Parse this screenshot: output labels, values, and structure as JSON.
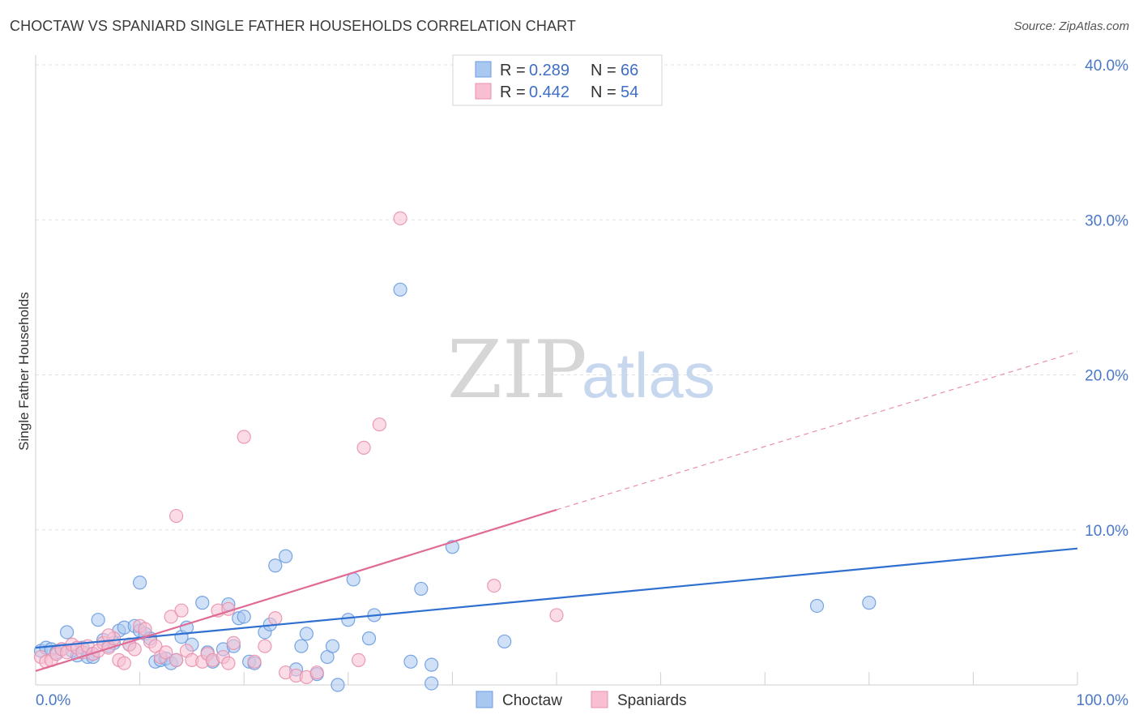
{
  "header": {
    "title": "CHOCTAW VS SPANIARD SINGLE FATHER HOUSEHOLDS CORRELATION CHART",
    "source": "Source: ZipAtlas.com"
  },
  "watermark": {
    "zip": "ZIP",
    "atlas": "atlas"
  },
  "legend": {
    "rows": [
      {
        "r_label": "R =",
        "r_value": "0.289",
        "n_label": "N =",
        "n_value": "66",
        "color": "#a9c8f0",
        "stroke": "#6a9be0"
      },
      {
        "r_label": "R =",
        "r_value": "0.442",
        "n_label": "N =",
        "n_value": "54",
        "color": "#f7bfd1",
        "stroke": "#e890ab"
      }
    ]
  },
  "chart_data": {
    "type": "scatter",
    "title": "CHOCTAW VS SPANIARD SINGLE FATHER HOUSEHOLDS CORRELATION CHART",
    "ylabel": "Single Father Households",
    "xlim": [
      0,
      100
    ],
    "ylim": [
      0,
      40
    ],
    "x_tick_labels": [
      {
        "value": 0,
        "label": "0.0%"
      },
      {
        "value": 100,
        "label": "100.0%"
      }
    ],
    "y_tick_labels": [
      {
        "value": 10,
        "label": "10.0%"
      },
      {
        "value": 20,
        "label": "20.0%"
      },
      {
        "value": 30,
        "label": "30.0%"
      },
      {
        "value": 40,
        "label": "40.0%"
      }
    ],
    "grid": true,
    "legend_position": "top-center",
    "series": [
      {
        "name": "Choctaw",
        "color": "#6a9be0",
        "fill": "#a9c8f0",
        "trend": {
          "x": [
            0,
            100
          ],
          "y": [
            2.4,
            8.8
          ]
        },
        "points": [
          [
            0.5,
            2.2
          ],
          [
            1,
            2.4
          ],
          [
            1.5,
            2.3
          ],
          [
            2,
            2.1
          ],
          [
            2.5,
            2.3
          ],
          [
            3,
            3.4
          ],
          [
            3.5,
            2.2
          ],
          [
            4,
            1.9
          ],
          [
            4.5,
            2.4
          ],
          [
            5,
            1.8
          ],
          [
            5.5,
            2.0
          ],
          [
            6,
            4.2
          ],
          [
            6.5,
            2.9
          ],
          [
            7,
            2.5
          ],
          [
            7.5,
            2.7
          ],
          [
            8,
            3.5
          ],
          [
            8.5,
            3.7
          ],
          [
            9,
            2.6
          ],
          [
            9.5,
            3.8
          ],
          [
            10,
            3.5
          ],
          [
            10.5,
            3.3
          ],
          [
            11,
            3.0
          ],
          [
            11.5,
            1.5
          ],
          [
            12,
            1.6
          ],
          [
            12.5,
            1.7
          ],
          [
            13,
            1.4
          ],
          [
            13.5,
            1.6
          ],
          [
            14,
            3.1
          ],
          [
            14.5,
            3.7
          ],
          [
            15,
            2.6
          ],
          [
            16,
            5.3
          ],
          [
            16.5,
            2.1
          ],
          [
            17,
            1.5
          ],
          [
            18,
            2.3
          ],
          [
            18.5,
            5.2
          ],
          [
            19,
            2.5
          ],
          [
            19.5,
            4.3
          ],
          [
            20,
            4.4
          ],
          [
            20.5,
            1.5
          ],
          [
            21,
            1.4
          ],
          [
            22,
            3.4
          ],
          [
            22.5,
            3.9
          ],
          [
            23,
            7.7
          ],
          [
            24,
            8.3
          ],
          [
            25,
            1.0
          ],
          [
            25.5,
            2.5
          ],
          [
            26,
            3.3
          ],
          [
            27,
            0.7
          ],
          [
            28,
            1.8
          ],
          [
            28.5,
            2.5
          ],
          [
            29,
            0
          ],
          [
            30,
            4.2
          ],
          [
            30.5,
            6.8
          ],
          [
            32,
            3.0
          ],
          [
            32.5,
            4.5
          ],
          [
            35,
            25.5
          ],
          [
            36,
            1.5
          ],
          [
            37,
            6.2
          ],
          [
            38,
            1.3
          ],
          [
            38,
            0.1
          ],
          [
            40,
            8.9
          ],
          [
            45,
            2.8
          ],
          [
            75,
            5.1
          ],
          [
            80,
            5.3
          ],
          [
            5.5,
            1.8
          ],
          [
            10,
            6.6
          ]
        ]
      },
      {
        "name": "Spaniards",
        "color": "#e890ab",
        "fill": "#f7bfd1",
        "trend": {
          "x": [
            0,
            50
          ],
          "y": [
            0.9,
            11.3
          ]
        },
        "trend_extension": {
          "x": [
            50,
            100
          ],
          "y": [
            11.3,
            21.5
          ]
        },
        "points": [
          [
            0.5,
            1.8
          ],
          [
            1,
            1.5
          ],
          [
            1.5,
            1.6
          ],
          [
            2,
            2.0
          ],
          [
            2.5,
            2.3
          ],
          [
            3,
            2.1
          ],
          [
            3.5,
            2.6
          ],
          [
            4,
            2.4
          ],
          [
            4.5,
            2.1
          ],
          [
            5,
            2.5
          ],
          [
            5.5,
            2.0
          ],
          [
            6,
            2.2
          ],
          [
            6.5,
            2.7
          ],
          [
            7,
            2.4
          ],
          [
            7.5,
            3.0
          ],
          [
            8,
            1.6
          ],
          [
            8.5,
            1.4
          ],
          [
            9,
            2.6
          ],
          [
            9.5,
            2.3
          ],
          [
            10,
            3.8
          ],
          [
            10.5,
            3.6
          ],
          [
            11,
            2.8
          ],
          [
            11.5,
            2.5
          ],
          [
            12,
            1.8
          ],
          [
            12.5,
            2.1
          ],
          [
            13,
            4.4
          ],
          [
            13.5,
            1.6
          ],
          [
            14,
            4.8
          ],
          [
            14.5,
            2.2
          ],
          [
            15,
            1.6
          ],
          [
            16,
            1.5
          ],
          [
            16.5,
            2.0
          ],
          [
            17,
            1.6
          ],
          [
            17.5,
            4.8
          ],
          [
            18,
            1.8
          ],
          [
            18.5,
            1.4
          ],
          [
            19,
            2.7
          ],
          [
            20,
            16.0
          ],
          [
            21,
            1.5
          ],
          [
            22,
            2.5
          ],
          [
            23,
            4.3
          ],
          [
            24,
            0.8
          ],
          [
            25,
            0.6
          ],
          [
            26,
            0.5
          ],
          [
            27,
            0.8
          ],
          [
            31,
            1.6
          ],
          [
            31.5,
            15.3
          ],
          [
            33,
            16.8
          ],
          [
            35,
            30.1
          ],
          [
            44,
            6.4
          ],
          [
            50,
            4.5
          ],
          [
            13.5,
            10.9
          ],
          [
            18.5,
            4.9
          ],
          [
            7,
            3.2
          ]
        ]
      }
    ]
  },
  "bottom_legend": [
    {
      "label": "Choctaw",
      "fill": "#a9c8f0",
      "stroke": "#6a9be0"
    },
    {
      "label": "Spaniards",
      "fill": "#f7bfd1",
      "stroke": "#e890ab"
    }
  ]
}
